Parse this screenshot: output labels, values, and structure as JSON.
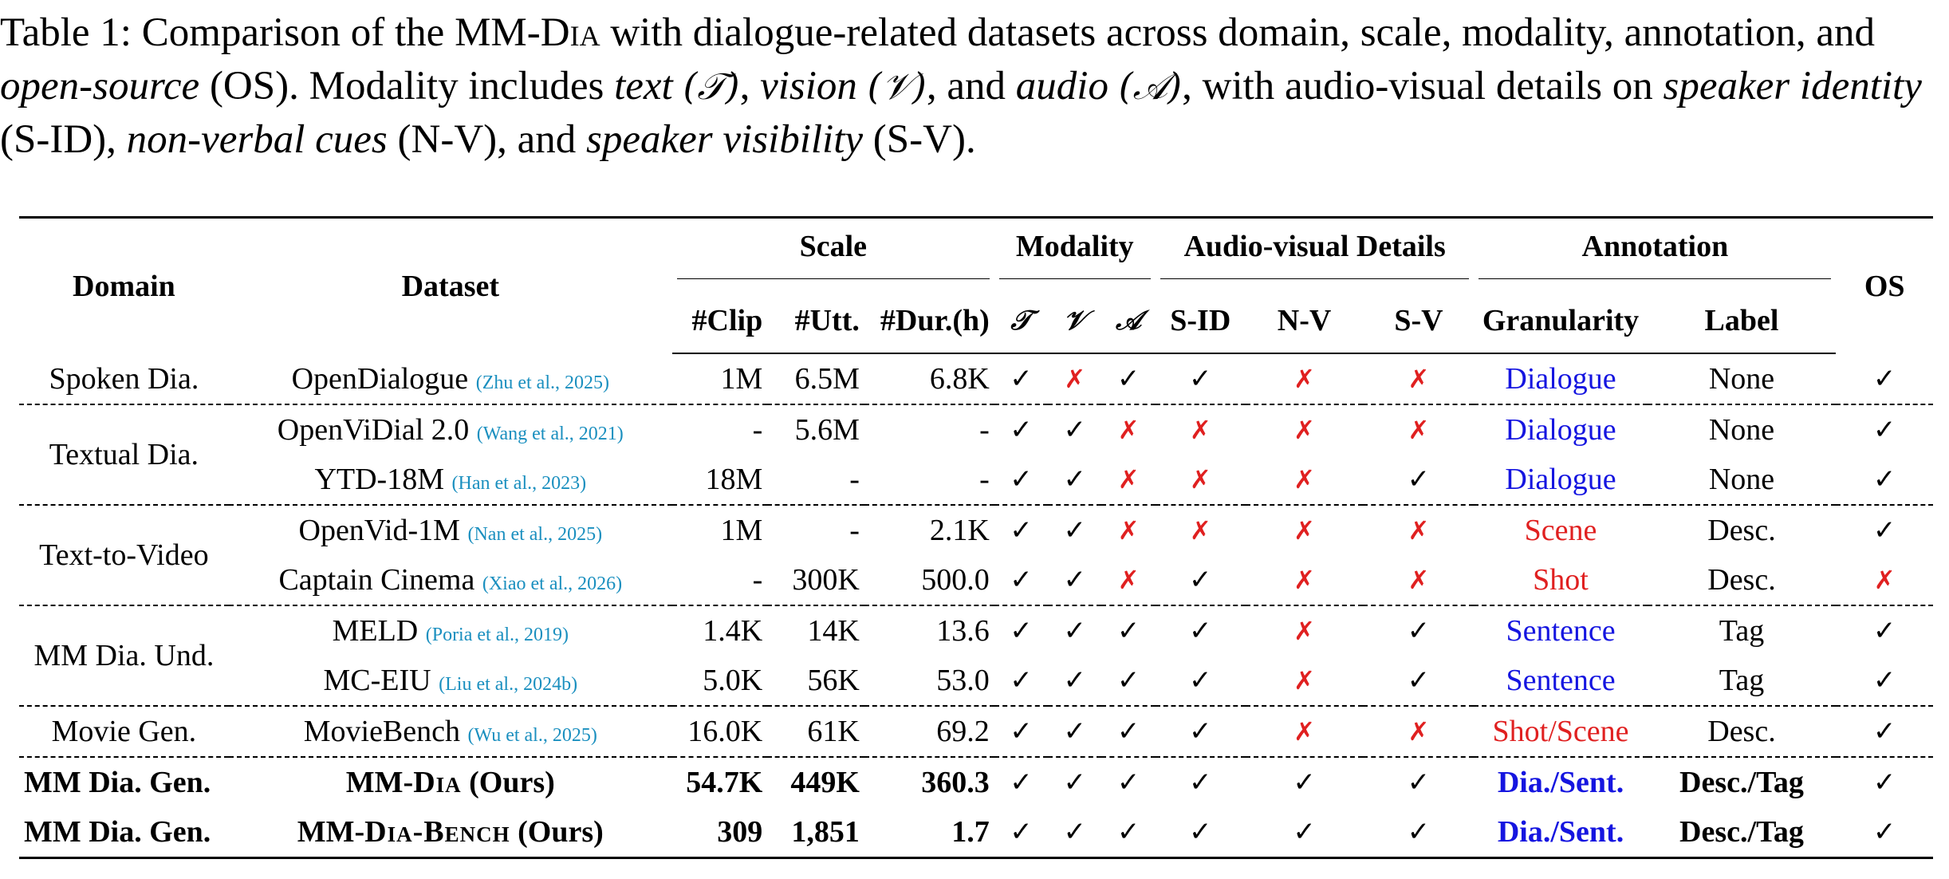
{
  "caption": {
    "label": "Table 1: Comparison of the MM-",
    "dia": "Dia",
    "text1": " with dialogue-related datasets across domain, scale, modality, annotation, and ",
    "os_term": "open-source",
    "text2": " (OS). Modality includes ",
    "text_term": "text",
    "text_sym": "(𝒯)",
    "sep1": ", ",
    "vision_term": "vision",
    "vision_sym": "(𝒱)",
    "sep2": ", and ",
    "audio_term": "audio",
    "audio_sym": "(𝒜)",
    "text3": ", with audio-visual details on ",
    "sid_term": "speaker identity",
    "text4": " (S-ID), ",
    "nv_term": "non-verbal cues",
    "text5": " (N-V), and ",
    "sv_term": "speaker visibility",
    "text6": " (S-V)."
  },
  "header": {
    "domain": "Domain",
    "dataset": "Dataset",
    "scale": "Scale",
    "modality": "Modality",
    "av_details": "Audio-visual Details",
    "annotation": "Annotation",
    "os": "OS",
    "clip": "#Clip",
    "utt": "#Utt.",
    "dur": "#Dur.(h)",
    "t": "𝒯",
    "v": "𝒱",
    "a": "𝒜",
    "sid": "S-ID",
    "nv": "N-V",
    "sv": "S-V",
    "granularity": "Granularity",
    "label": "Label"
  },
  "marks": {
    "check": "✓",
    "cross": "✗"
  },
  "rows": [
    {
      "domain": "Spoken Dia.",
      "dataset": "OpenDialogue",
      "cite_authors": "Zhu et al.,",
      "cite_year": "2025",
      "clip": "1M",
      "utt": "6.5M",
      "dur": "6.8K",
      "gran": "Dialogue",
      "label": "None"
    },
    {
      "domain": "Textual Dia.",
      "dataset": "OpenViDial 2.0",
      "cite_authors": "Wang et al.,",
      "cite_year": "2021",
      "clip": "-",
      "utt": "5.6M",
      "dur": "-",
      "gran": "Dialogue",
      "label": "None"
    },
    {
      "dataset": "YTD-18M",
      "cite_authors": "Han et al.,",
      "cite_year": "2023",
      "clip": "18M",
      "utt": "-",
      "dur": "-",
      "gran": "Dialogue",
      "label": "None"
    },
    {
      "domain": "Text-to-Video",
      "dataset": "OpenVid-1M",
      "cite_authors": "Nan et al.,",
      "cite_year": "2025",
      "clip": "1M",
      "utt": "-",
      "dur": "2.1K",
      "gran": "Scene",
      "label": "Desc."
    },
    {
      "dataset": "Captain Cinema",
      "cite_authors": "Xiao et al.,",
      "cite_year": "2026",
      "clip": "-",
      "utt": "300K",
      "dur": "500.0",
      "gran": "Shot",
      "label": "Desc."
    },
    {
      "domain": "MM Dia. Und.",
      "dataset": "MELD",
      "cite_authors": "Poria et al.,",
      "cite_year": "2019",
      "clip": "1.4K",
      "utt": "14K",
      "dur": "13.6",
      "gran": "Sentence",
      "label": "Tag"
    },
    {
      "dataset": "MC-EIU",
      "cite_authors": "Liu et al.,",
      "cite_year": "2024b",
      "clip": "5.0K",
      "utt": "56K",
      "dur": "53.0",
      "gran": "Sentence",
      "label": "Tag"
    },
    {
      "domain": "Movie Gen.",
      "dataset": "MovieBench",
      "cite_authors": "Wu et al.,",
      "cite_year": "2025",
      "clip": "16.0K",
      "utt": "61K",
      "dur": "69.2",
      "gran": "Shot/Scene",
      "label": "Desc."
    },
    {
      "domain": "MM Dia. Gen.",
      "dataset_main": "MM-",
      "dataset_sc": "Dia",
      "dataset_suffix": " (Ours)",
      "clip": "54.7K",
      "utt": "449K",
      "dur": "360.3",
      "gran": "Dia./Sent.",
      "label": "Desc./Tag"
    },
    {
      "domain": "MM Dia. Gen.",
      "dataset_main": "MM-",
      "dataset_sc": "Dia-Bench",
      "dataset_suffix": " (Ours)",
      "clip": "309",
      "utt": "1,851",
      "dur": "1.7",
      "gran": "Dia./Sent.",
      "label": "Desc./Tag"
    }
  ]
}
